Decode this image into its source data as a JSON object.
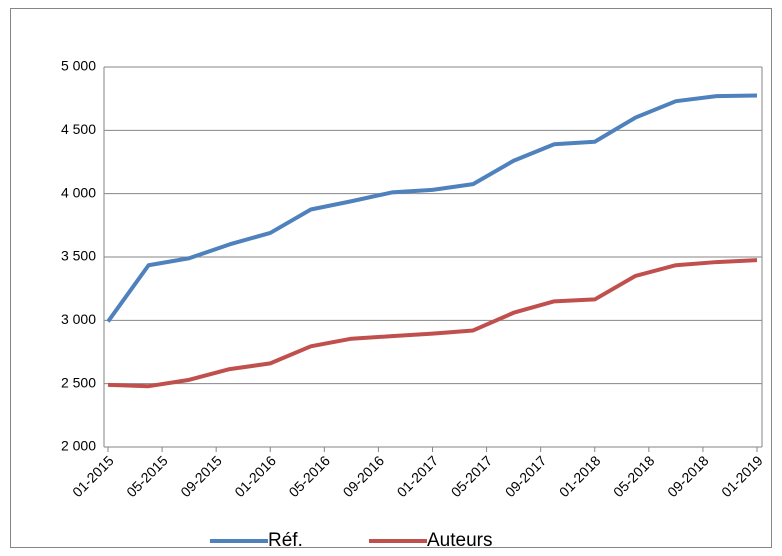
{
  "chart_data": {
    "type": "line",
    "x": [
      "2015-01",
      "2015-04",
      "2015-07",
      "2015-10",
      "2016-01",
      "2016-04",
      "2016-07",
      "2016-10",
      "2017-01",
      "2017-04",
      "2017-07",
      "2017-10",
      "2018-01",
      "2018-04",
      "2018-07",
      "2018-10",
      "2019-01"
    ],
    "series": [
      {
        "name": "Réf.",
        "color": "#4f81bd",
        "values": [
          2990,
          3435,
          3490,
          3600,
          3690,
          3875,
          3940,
          4010,
          4030,
          4075,
          4260,
          4390,
          4410,
          4600,
          4730,
          4770,
          4775
        ]
      },
      {
        "name": "Auteurs",
        "color": "#c0504d",
        "values": [
          2490,
          2480,
          2530,
          2615,
          2660,
          2795,
          2855,
          2875,
          2895,
          2920,
          3060,
          3150,
          3165,
          3350,
          3435,
          3460,
          3475
        ]
      }
    ],
    "xlim": [
      "2015-01",
      "2019-01"
    ],
    "xticks": [
      {
        "value": "2015-01",
        "label": "01-2015"
      },
      {
        "value": "2015-05",
        "label": "05-2015"
      },
      {
        "value": "2015-09",
        "label": "09-2015"
      },
      {
        "value": "2016-01",
        "label": "01-2016"
      },
      {
        "value": "2016-05",
        "label": "05-2016"
      },
      {
        "value": "2016-09",
        "label": "09-2016"
      },
      {
        "value": "2017-01",
        "label": "01-2017"
      },
      {
        "value": "2017-05",
        "label": "05-2017"
      },
      {
        "value": "2017-09",
        "label": "09-2017"
      },
      {
        "value": "2018-01",
        "label": "01-2018"
      },
      {
        "value": "2018-05",
        "label": "05-2018"
      },
      {
        "value": "2018-09",
        "label": "09-2018"
      },
      {
        "value": "2019-01",
        "label": "01-2019"
      }
    ],
    "ylim": [
      2000,
      5000
    ],
    "yticks": [
      {
        "value": 2000,
        "label": "2 000"
      },
      {
        "value": 2500,
        "label": "2 500"
      },
      {
        "value": 3000,
        "label": "3 000"
      },
      {
        "value": 3500,
        "label": "3 500"
      },
      {
        "value": 4000,
        "label": "4 000"
      },
      {
        "value": 4500,
        "label": "4 500"
      },
      {
        "value": 5000,
        "label": "5 000"
      }
    ],
    "grid": true,
    "legend": "bottom"
  }
}
